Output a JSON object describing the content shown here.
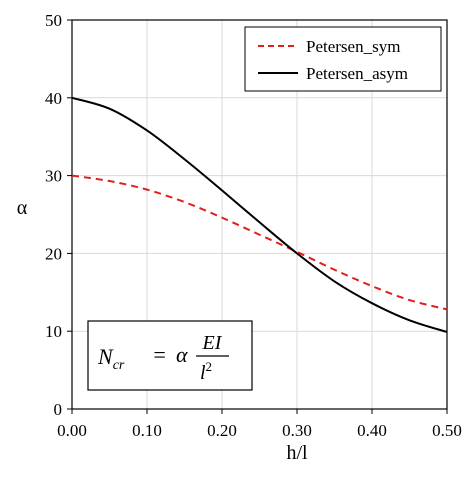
{
  "chart_data": {
    "type": "line",
    "title": "",
    "xlabel": "h/l",
    "ylabel": "α",
    "xlim": [
      0,
      0.5
    ],
    "ylim": [
      0,
      50
    ],
    "x_ticks": [
      "0.00",
      "0.10",
      "0.20",
      "0.30",
      "0.40",
      "0.50"
    ],
    "y_ticks": [
      "0",
      "10",
      "20",
      "30",
      "40",
      "50"
    ],
    "grid": true,
    "legend_position": "top-right",
    "series": [
      {
        "name": "Petersen_sym",
        "color": "#e0201b",
        "style": "dashed",
        "x": [
          0.0,
          0.05,
          0.1,
          0.15,
          0.2,
          0.25,
          0.3,
          0.35,
          0.4,
          0.45,
          0.5
        ],
        "y": [
          30.0,
          29.3,
          28.2,
          26.6,
          24.6,
          22.4,
          20.2,
          17.9,
          15.8,
          14.0,
          12.8
        ]
      },
      {
        "name": "Petersen_asym",
        "color": "#000000",
        "style": "solid",
        "x": [
          0.0,
          0.05,
          0.1,
          0.15,
          0.2,
          0.25,
          0.3,
          0.35,
          0.4,
          0.45,
          0.5
        ],
        "y": [
          40.0,
          38.6,
          35.8,
          32.1,
          28.1,
          24.0,
          20.0,
          16.4,
          13.6,
          11.4,
          9.9
        ]
      }
    ],
    "annotation": {
      "lhs": "N",
      "lhs_sub": "cr",
      "equals": "=",
      "coef": "α",
      "numerator": "EI",
      "denominator": "l",
      "denominator_sup": "2"
    }
  }
}
